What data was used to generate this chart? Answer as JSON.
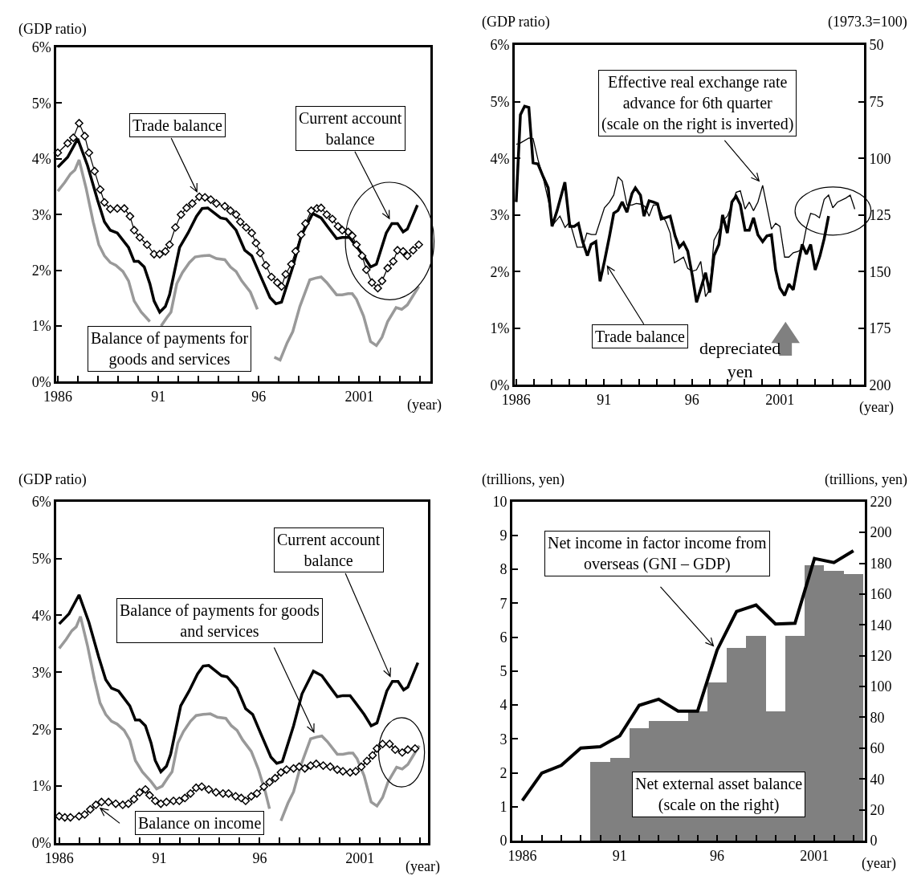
{
  "chart_data": [
    {
      "type": "line",
      "ylabel": "(GDP ratio)",
      "xlabel": "(year)",
      "xlim": [
        1985.93,
        2004.52
      ],
      "xticks": [
        1986,
        {
          "value": 1987,
          "label": null
        },
        {
          "value": 1988,
          "label": null
        },
        {
          "value": 1989,
          "label": null
        },
        {
          "value": 1990,
          "label": null
        },
        {
          "value": 1991,
          "label": "91"
        },
        {
          "value": 1992,
          "label": null
        },
        {
          "value": 1993,
          "label": null
        },
        {
          "value": 1994,
          "label": null
        },
        {
          "value": 1995,
          "label": null
        },
        {
          "value": 1996,
          "label": "96"
        },
        {
          "value": 1997,
          "label": null
        },
        {
          "value": 1998,
          "label": null
        },
        {
          "value": 1999,
          "label": null
        },
        {
          "value": 2000,
          "label": null
        },
        2001,
        {
          "value": 2002,
          "label": null
        },
        {
          "value": 2003,
          "label": null
        },
        {
          "value": 2004,
          "label": null
        }
      ],
      "ylim": [
        0,
        6
      ],
      "yticks": [
        {
          "value": 0,
          "label": "0%"
        },
        {
          "value": 1,
          "label": "1%"
        },
        {
          "value": 2,
          "label": "2%"
        },
        {
          "value": 3,
          "label": "3%"
        },
        {
          "value": 4,
          "label": "4%"
        },
        {
          "value": 5,
          "label": "5%"
        },
        {
          "value": 6,
          "label": "6%"
        }
      ],
      "series": [
        {
          "name": "Balance of payments for\ngoods and services",
          "color": "#999999",
          "x": [
            1986,
            1986.35,
            1986.63,
            1986.85,
            1987.06,
            1987.41,
            1987.76,
            1988.04,
            1988.32,
            1988.61,
            1988.89,
            1989.24,
            1989.52,
            1989.8,
            1990.15,
            1990.58,
            1990.86,
            1991.14,
            1991.42,
            1991.63,
            1991.92,
            1992.2,
            1992.55,
            1992.83,
            1993.18,
            1993.54,
            1993.89,
            1994.31,
            1994.59,
            1994.87,
            1995.15,
            1995.58,
            1995.93,
            1996.28,
            1996.49,
            1996.77,
            1997.06,
            1997.41,
            1997.69,
            1998.04,
            1998.54,
            1998.82,
            1999.1,
            1999.38,
            1999.87,
            2000.15,
            2000.44,
            2000.65,
            2000.86,
            2001.21,
            2001.56,
            2001.85,
            2002.13,
            2002.41,
            2002.83,
            2003.11,
            2003.39,
            2003.96
          ],
          "values": [
            3.42,
            3.58,
            3.73,
            3.8,
            3.98,
            3.47,
            2.87,
            2.46,
            2.26,
            2.14,
            2.09,
            1.98,
            1.81,
            1.45,
            1.25,
            1.08,
            null,
            1.0,
            1.15,
            1.25,
            1.76,
            1.96,
            2.14,
            2.24,
            2.26,
            2.27,
            2.21,
            2.19,
            2.06,
            1.98,
            1.81,
            1.61,
            1.3,
            null,
            null,
            0.44,
            0.39,
            0.7,
            0.9,
            1.35,
            1.83,
            1.86,
            1.88,
            1.78,
            1.56,
            1.56,
            1.58,
            1.58,
            1.48,
            1.18,
            0.72,
            0.65,
            0.8,
            1.08,
            1.33,
            1.3,
            1.38,
            1.71
          ]
        },
        {
          "name": "Current account\nbalance",
          "color": "#000000",
          "x": [
            1986,
            1986.49,
            1986.99,
            1987.48,
            1987.97,
            1988.32,
            1988.61,
            1988.96,
            1989.52,
            1989.8,
            1990.01,
            1990.3,
            1990.58,
            1990.79,
            1991.07,
            1991.35,
            1991.56,
            1992.06,
            1992.48,
            1992.9,
            1993.18,
            1993.46,
            1994.1,
            1994.38,
            1994.87,
            1995.3,
            1995.65,
            1996.07,
            1996.56,
            1996.85,
            1997.13,
            1997.69,
            1998.11,
            1998.68,
            1999.1,
            1999.45,
            1999.87,
            2000.15,
            2000.51,
            2000.79,
            2001.21,
            2001.56,
            2001.85,
            2002.34,
            2002.62,
            2002.9,
            2003.18,
            2003.39,
            2003.89
          ],
          "values": [
            3.85,
            4.03,
            4.36,
            3.88,
            3.27,
            2.87,
            2.72,
            2.67,
            2.41,
            2.16,
            2.16,
            2.06,
            1.76,
            1.45,
            1.25,
            1.35,
            1.56,
            2.41,
            2.67,
            2.97,
            3.11,
            3.12,
            2.94,
            2.92,
            2.72,
            2.36,
            2.26,
            1.91,
            1.51,
            1.4,
            1.43,
            2.06,
            2.62,
            3.02,
            2.94,
            2.77,
            2.57,
            2.59,
            2.59,
            2.46,
            2.26,
            2.06,
            2.11,
            2.67,
            2.84,
            2.84,
            2.69,
            2.74,
            3.17
          ]
        },
        {
          "name": "Trade balance",
          "color": "#000000",
          "marker": "diamond",
          "x": [
            1986,
            1986.49,
            1986.77,
            1987.06,
            1987.34,
            1987.55,
            1987.83,
            1988.11,
            1988.32,
            1988.61,
            1988.96,
            1989.31,
            1989.59,
            1989.8,
            1990.08,
            1990.44,
            1990.79,
            1991.07,
            1991.35,
            1991.56,
            1991.85,
            1992.13,
            1992.41,
            1992.69,
            1993.04,
            1993.32,
            1993.61,
            1993.89,
            1994.31,
            1994.59,
            1994.87,
            1995.08,
            1995.37,
            1995.65,
            1995.86,
            1996.07,
            1996.35,
            1996.63,
            1996.92,
            1997.13,
            1997.34,
            1997.62,
            1997.83,
            1998.11,
            1998.32,
            1998.61,
            1998.89,
            1999.1,
            1999.38,
            1999.66,
            1999.94,
            2000.15,
            2000.44,
            2000.65,
            2000.86,
            2001.14,
            2001.35,
            2001.63,
            2001.92,
            2002.13,
            2002.41,
            2002.69,
            2002.9,
            2003.18,
            2003.39,
            2003.68,
            2003.96
          ],
          "values": [
            4.11,
            4.28,
            4.38,
            4.64,
            4.41,
            4.11,
            3.78,
            3.45,
            3.22,
            3.1,
            3.11,
            3.11,
            2.97,
            2.72,
            2.59,
            2.46,
            2.29,
            2.29,
            2.34,
            2.46,
            2.77,
            3.0,
            3.12,
            3.2,
            3.32,
            3.31,
            3.27,
            3.2,
            3.15,
            3.07,
            3.0,
            2.87,
            2.77,
            2.67,
            2.49,
            2.31,
            2.09,
            1.88,
            1.78,
            1.71,
            1.93,
            2.11,
            2.34,
            2.64,
            2.84,
            3.07,
            3.11,
            3.12,
            3.0,
            2.92,
            2.79,
            2.72,
            2.69,
            2.62,
            2.46,
            2.26,
            2.01,
            1.78,
            1.68,
            1.81,
            2.04,
            2.16,
            2.36,
            2.34,
            2.26,
            2.36,
            2.46
          ]
        }
      ]
    },
    {
      "type": "line",
      "ylabel": "(GDP ratio)",
      "y2label": "(1973.3=100)",
      "xlabel": "(year)",
      "xlim": [
        1985.92,
        2005.78
      ],
      "xticks": [
        1986,
        {
          "value": 1987,
          "label": null
        },
        {
          "value": 1988,
          "label": null
        },
        {
          "value": 1989,
          "label": null
        },
        {
          "value": 1990,
          "label": null
        },
        {
          "value": 1991,
          "label": "91"
        },
        {
          "value": 1992,
          "label": null
        },
        {
          "value": 1993,
          "label": null
        },
        {
          "value": 1994,
          "label": null
        },
        {
          "value": 1995,
          "label": null
        },
        {
          "value": 1996,
          "label": "96"
        },
        {
          "value": 1997,
          "label": null
        },
        {
          "value": 1998,
          "label": null
        },
        {
          "value": 1999,
          "label": null
        },
        {
          "value": 2000,
          "label": null
        },
        2001,
        {
          "value": 2002,
          "label": null
        },
        {
          "value": 2003,
          "label": null
        },
        {
          "value": 2004,
          "label": null
        },
        {
          "value": 2005,
          "label": null
        }
      ],
      "ylim": [
        0,
        6
      ],
      "yticks": [
        {
          "value": 0,
          "label": "0%"
        },
        {
          "value": 1,
          "label": "1%"
        },
        {
          "value": 2,
          "label": "2%"
        },
        {
          "value": 3,
          "label": "3%"
        },
        {
          "value": 4,
          "label": "4%"
        },
        {
          "value": 5,
          "label": "5%"
        },
        {
          "value": 6,
          "label": "6%"
        }
      ],
      "y2lim": [
        200,
        50
      ],
      "y2ticks": [
        50,
        75,
        100,
        125,
        150,
        175,
        200
      ],
      "annotations": [
        "depreciated\nyen"
      ],
      "series": [
        {
          "name": "Effective real exchange rate\nadvance for 6th quarter\n(scale on the right is inverted)",
          "color": "#000000",
          "axis": "y2",
          "x": [
            1986,
            1986.24,
            1986.72,
            1986.96,
            1987.24,
            1987.56,
            1987.85,
            1988.09,
            1988.49,
            1988.78,
            1989.05,
            1989.46,
            1989.78,
            1990.02,
            1990.29,
            1990.53,
            1991.02,
            1991.31,
            1991.55,
            1991.79,
            1992.03,
            1992.3,
            1992.59,
            1992.83,
            1993.07,
            1993.32,
            1993.56,
            1993.8,
            1994.04,
            1994.28,
            1994.52,
            1994.76,
            1995,
            1995.28,
            1995.52,
            1995.76,
            1996.02,
            1996.26,
            1996.5,
            1996.77,
            1997.01,
            1997.25,
            1997.5,
            1997.77,
            1998.01,
            1998.27,
            1998.51,
            1998.75,
            1999.02,
            1999.26,
            1999.5,
            1999.75,
            2000.02,
            2000.26,
            2000.52,
            2000.76,
            2001,
            2001.27,
            2001.51,
            2001.76,
            2002.03,
            2002.27,
            2002.51,
            2002.75,
            2003.01,
            2003.25,
            2003.52,
            2003.77,
            2004.01,
            2004.28,
            2004.76,
            2005,
            2005.26
          ],
          "values": [
            93.8,
            93.2,
            91.0,
            91.3,
            100.6,
            109.4,
            119.3,
            129.3,
            125.5,
            130.5,
            128.0,
            139.2,
            139.2,
            133.0,
            133.6,
            133.6,
            121.8,
            119.3,
            116.2,
            108.1,
            110.0,
            120.6,
            120.6,
            119.9,
            120.2,
            121.2,
            125.5,
            120.6,
            120.6,
            125.0,
            128.0,
            133.0,
            146.1,
            144.8,
            143.6,
            148.6,
            149.8,
            149.2,
            145.5,
            161.0,
            157.9,
            136.1,
            132.4,
            127.4,
            125.5,
            120.6,
            115.0,
            114.3,
            122.4,
            119.3,
            123.1,
            119.3,
            111.9,
            121.2,
            131.2,
            128.7,
            130.0,
            143.6,
            143.6,
            141.7,
            141.1,
            139.9,
            130.5,
            124.3,
            124.9,
            126.2,
            118.1,
            116.2,
            121.8,
            119.3,
            117.5,
            116.2,
            122.4
          ]
        },
        {
          "name": "Trade balance",
          "color": "#000000",
          "x": [
            1986,
            1986.24,
            1986.48,
            1986.72,
            1986.96,
            1987.24,
            1987.53,
            1987.82,
            1988.04,
            1988.33,
            1988.77,
            1989.05,
            1989.3,
            1989.54,
            1989.78,
            1990.05,
            1990.26,
            1990.53,
            1990.77,
            1991.02,
            1991.31,
            1991.55,
            1991.79,
            1992.03,
            1992.3,
            1992.59,
            1992.78,
            1993.07,
            1993.27,
            1993.56,
            1993.8,
            1994.04,
            1994.25,
            1994.47,
            1994.76,
            1995.04,
            1995.28,
            1995.52,
            1995.76,
            1996.02,
            1996.26,
            1996.53,
            1996.77,
            1997.01,
            1997.25,
            1997.53,
            1997.74,
            1998.01,
            1998.27,
            1998.51,
            1998.75,
            1999.02,
            1999.26,
            1999.5,
            1999.75,
            2000.02,
            2000.26,
            2000.52,
            2000.76,
            2001,
            2001.27,
            2001.51,
            2001.76,
            2002.03,
            2002.27,
            2002.51,
            2002.75,
            2003.01,
            2003.28,
            2003.52,
            2003.77
          ],
          "values": [
            3.23,
            4.77,
            4.92,
            4.9,
            3.92,
            3.9,
            3.68,
            3.48,
            2.8,
            3.08,
            3.58,
            2.8,
            2.8,
            2.85,
            2.53,
            2.28,
            2.48,
            2.53,
            1.83,
            2.18,
            2.63,
            3.03,
            3.08,
            3.23,
            3.05,
            3.38,
            3.48,
            3.35,
            2.98,
            3.25,
            3.23,
            3.2,
            2.93,
            2.95,
            2.98,
            2.63,
            2.43,
            2.51,
            2.36,
            1.93,
            1.46,
            1.73,
            1.98,
            1.63,
            2.28,
            2.48,
            3.0,
            2.68,
            3.23,
            3.33,
            3.18,
            2.73,
            2.73,
            2.95,
            2.65,
            2.53,
            2.63,
            2.65,
            2.03,
            1.71,
            1.58,
            1.78,
            1.68,
            2.13,
            2.48,
            2.31,
            2.48,
            2.03,
            2.28,
            2.58,
            2.98
          ]
        }
      ]
    },
    {
      "type": "line",
      "ylabel": "(GDP ratio)",
      "xlabel": "(year)",
      "xlim": [
        1985.86,
        2004.38
      ],
      "xticks": [
        1986,
        {
          "value": 1987,
          "label": null
        },
        {
          "value": 1988,
          "label": null
        },
        {
          "value": 1989,
          "label": null
        },
        {
          "value": 1990,
          "label": null
        },
        {
          "value": 1991,
          "label": "91"
        },
        {
          "value": 1992,
          "label": null
        },
        {
          "value": 1993,
          "label": null
        },
        {
          "value": 1994,
          "label": null
        },
        {
          "value": 1995,
          "label": null
        },
        {
          "value": 1996,
          "label": "96"
        },
        {
          "value": 1997,
          "label": null
        },
        {
          "value": 1998,
          "label": null
        },
        {
          "value": 1999,
          "label": null
        },
        {
          "value": 2000,
          "label": null
        },
        2001,
        {
          "value": 2002,
          "label": null
        },
        {
          "value": 2003,
          "label": null
        },
        {
          "value": 2004,
          "label": null
        }
      ],
      "ylim": [
        0,
        6
      ],
      "yticks": [
        {
          "value": 0,
          "label": "0%"
        },
        {
          "value": 1,
          "label": "1%"
        },
        {
          "value": 2,
          "label": "2%"
        },
        {
          "value": 3,
          "label": "3%"
        },
        {
          "value": 4,
          "label": "4%"
        },
        {
          "value": 5,
          "label": "5%"
        },
        {
          "value": 6,
          "label": "6%"
        }
      ],
      "series": [
        {
          "name": "Balance of payments for goods\nand services",
          "color": "#999999",
          "x": [
            1986,
            1986.35,
            1986.63,
            1986.85,
            1987.06,
            1987.41,
            1987.76,
            1988.04,
            1988.32,
            1988.61,
            1988.89,
            1989.24,
            1989.52,
            1989.8,
            1990.15,
            1990.58,
            1990.86,
            1991.14,
            1991.42,
            1991.63,
            1991.92,
            1992.2,
            1992.55,
            1992.83,
            1993.18,
            1993.54,
            1993.89,
            1994.31,
            1994.59,
            1994.87,
            1995.15,
            1995.58,
            1995.93,
            1996.28,
            1996.49,
            1996.77,
            1997.06,
            1997.41,
            1997.69,
            1998.04,
            1998.54,
            1998.82,
            1999.1,
            1999.38,
            1999.87,
            2000.15,
            2000.44,
            2000.65,
            2000.86,
            2001.21,
            2001.56,
            2001.85,
            2002.13,
            2002.41,
            2002.83,
            2003.11,
            2003.39,
            2003.96
          ],
          "values": [
            3.42,
            3.58,
            3.73,
            3.8,
            3.98,
            3.47,
            2.87,
            2.46,
            2.26,
            2.14,
            2.09,
            1.98,
            1.81,
            1.45,
            1.25,
            1.08,
            0.95,
            1.0,
            1.15,
            1.25,
            1.76,
            1.96,
            2.14,
            2.24,
            2.26,
            2.27,
            2.21,
            2.19,
            2.06,
            1.98,
            1.81,
            1.61,
            1.3,
            0.9,
            0.6,
            null,
            0.39,
            0.7,
            0.9,
            1.35,
            1.83,
            1.86,
            1.88,
            1.78,
            1.56,
            1.56,
            1.58,
            1.58,
            1.48,
            1.18,
            0.72,
            0.65,
            0.8,
            1.08,
            1.33,
            1.3,
            1.38,
            1.71
          ]
        },
        {
          "name": "Current account\nbalance",
          "color": "#000000",
          "x": [
            1986,
            1986.49,
            1986.99,
            1987.48,
            1987.97,
            1988.32,
            1988.61,
            1988.96,
            1989.52,
            1989.8,
            1990.01,
            1990.3,
            1990.58,
            1990.79,
            1991.07,
            1991.35,
            1991.56,
            1992.06,
            1992.48,
            1992.9,
            1993.18,
            1993.46,
            1994.1,
            1994.38,
            1994.87,
            1995.3,
            1995.65,
            1996.07,
            1996.56,
            1996.85,
            1997.13,
            1997.69,
            1998.11,
            1998.68,
            1999.1,
            1999.45,
            1999.87,
            2000.15,
            2000.51,
            2000.79,
            2001.21,
            2001.56,
            2001.85,
            2002.34,
            2002.62,
            2002.9,
            2003.18,
            2003.39,
            2003.89
          ],
          "values": [
            3.85,
            4.03,
            4.36,
            3.88,
            3.27,
            2.87,
            2.72,
            2.67,
            2.41,
            2.16,
            2.16,
            2.06,
            1.76,
            1.45,
            1.25,
            1.35,
            1.56,
            2.41,
            2.67,
            2.97,
            3.11,
            3.12,
            2.94,
            2.92,
            2.72,
            2.36,
            2.26,
            1.91,
            1.51,
            1.4,
            1.43,
            2.06,
            2.62,
            3.02,
            2.94,
            2.77,
            2.57,
            2.59,
            2.59,
            2.46,
            2.26,
            2.06,
            2.11,
            2.67,
            2.84,
            2.84,
            2.69,
            2.74,
            3.17
          ]
        },
        {
          "name": "Balance on income",
          "color": "#000000",
          "marker": "diamond",
          "x": [
            1986,
            1986.28,
            1986.56,
            1986.99,
            1987.27,
            1987.55,
            1987.83,
            1988.11,
            1988.46,
            1988.82,
            1989.17,
            1989.45,
            1989.73,
            1990.01,
            1990.3,
            1990.51,
            1990.79,
            1991.07,
            1991.35,
            1991.7,
            1991.99,
            1992.27,
            1992.55,
            1992.83,
            1993.11,
            1993.46,
            1993.82,
            1994.17,
            1994.45,
            1994.8,
            1995.08,
            1995.3,
            1995.58,
            1995.86,
            1996.21,
            1996.49,
            1996.77,
            1997.06,
            1997.34,
            1997.69,
            1997.97,
            1998.25,
            1998.54,
            1998.82,
            1999.17,
            1999.52,
            1999.87,
            2000.15,
            2000.51,
            2000.79,
            2001.07,
            2001.35,
            2001.63,
            2001.85,
            2002.13,
            2002.48,
            2002.76,
            2003.11,
            2003.39,
            2003.75
          ],
          "values": [
            0.47,
            0.45,
            0.45,
            0.47,
            0.5,
            0.59,
            0.67,
            0.72,
            0.72,
            0.69,
            0.67,
            0.69,
            0.77,
            0.89,
            0.94,
            0.84,
            0.74,
            0.69,
            0.72,
            0.74,
            0.74,
            0.79,
            0.87,
            0.97,
            0.99,
            0.94,
            0.89,
            0.87,
            0.87,
            0.82,
            0.79,
            0.74,
            0.82,
            0.87,
            0.99,
            1.07,
            1.14,
            1.24,
            1.29,
            1.31,
            1.34,
            1.31,
            1.36,
            1.39,
            1.36,
            1.34,
            1.29,
            1.26,
            1.24,
            1.26,
            1.34,
            1.44,
            1.54,
            1.66,
            1.74,
            1.74,
            1.64,
            1.59,
            1.64,
            1.66
          ]
        }
      ]
    },
    {
      "type": "bar",
      "ylabel": "(trillions, yen)",
      "y2label": "(trillions, yen)",
      "xlabel": "(year)",
      "xlim": [
        1985.49,
        2003.58
      ],
      "xticks": [
        1986,
        {
          "value": 1987,
          "label": null
        },
        {
          "value": 1988,
          "label": null
        },
        {
          "value": 1989,
          "label": null
        },
        {
          "value": 1990,
          "label": null
        },
        {
          "value": 1991,
          "label": "91"
        },
        {
          "value": 1992,
          "label": null
        },
        {
          "value": 1993,
          "label": null
        },
        {
          "value": 1994,
          "label": null
        },
        {
          "value": 1995,
          "label": null
        },
        {
          "value": 1996,
          "label": "96"
        },
        {
          "value": 1997,
          "label": null
        },
        {
          "value": 1998,
          "label": null
        },
        {
          "value": 1999,
          "label": null
        },
        {
          "value": 2000,
          "label": null
        },
        2001,
        {
          "value": 2002,
          "label": null
        },
        {
          "value": 2003,
          "label": null
        }
      ],
      "ylim": [
        0,
        10
      ],
      "yticks": [
        0,
        1,
        2,
        3,
        4,
        5,
        6,
        7,
        8,
        9,
        10
      ],
      "y2lim": [
        0,
        220
      ],
      "y2ticks": [
        0,
        20,
        40,
        60,
        80,
        100,
        120,
        140,
        160,
        180,
        200,
        220
      ],
      "series": [
        {
          "name": "Net external asset balance\n(scale on the right)",
          "type": "bar",
          "axis": "y2",
          "color": "#808080",
          "x": [
            1990,
            1991,
            1992,
            1993,
            1994,
            1995,
            1996,
            1997,
            1998,
            1999,
            2000,
            2001,
            2002,
            2003
          ],
          "values": [
            51,
            54,
            73,
            78,
            78,
            84,
            103,
            125,
            133,
            84,
            133,
            179,
            175,
            173
          ]
        },
        {
          "name": "Net income in factor income from\noverseas (GNI – GDP)",
          "type": "line",
          "color": "#000000",
          "x": [
            1986,
            1987,
            1988,
            1989,
            1990,
            1991,
            1992,
            1993,
            1994,
            1995,
            1996,
            1997,
            1998,
            1999,
            2000,
            2001,
            2002,
            2003
          ],
          "values": [
            1.18,
            1.99,
            2.22,
            2.73,
            2.77,
            3.09,
            3.99,
            4.17,
            3.82,
            3.82,
            5.62,
            6.76,
            6.95,
            6.39,
            6.41,
            8.32,
            8.2,
            8.55
          ]
        }
      ]
    }
  ]
}
